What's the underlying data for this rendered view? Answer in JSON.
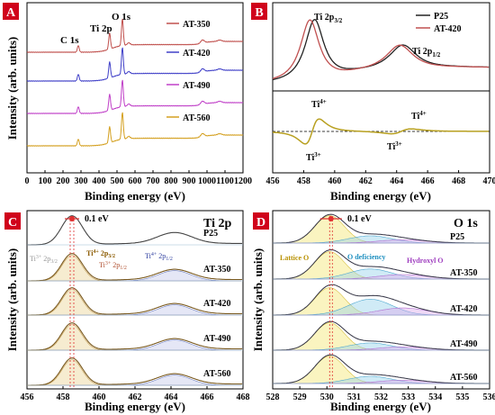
{
  "colors": {
    "badge": "#d0021b",
    "dashed_ref": "#e03030",
    "p25": "#222222",
    "at420": "#c05050",
    "diff": "#b8a020"
  },
  "chart_data": [
    {
      "panel": "A",
      "type": "line",
      "xlabel": "Binding energy (eV)",
      "ylabel": "Intensity (arb. units)",
      "xlim": [
        0,
        1200
      ],
      "xticks": [
        "0",
        "100",
        "200",
        "300",
        "400",
        "500",
        "600",
        "700",
        "800",
        "900",
        "1000",
        "1100",
        "1200"
      ],
      "annotations": [
        "C 1s",
        "Ti 2p",
        "O 1s"
      ],
      "series": [
        {
          "name": "AT-350",
          "color": "#c0504d",
          "offset": 4
        },
        {
          "name": "AT-420",
          "color": "#4040c8",
          "offset": 3
        },
        {
          "name": "AT-490",
          "color": "#c040c8",
          "offset": 2
        },
        {
          "name": "AT-560",
          "color": "#d4a020",
          "offset": 1
        }
      ],
      "peaks": [
        {
          "label": "C 1s",
          "x": 285,
          "height": 0.25
        },
        {
          "label": "Ti 2p",
          "x": 459,
          "height": 0.6
        },
        {
          "label": "O 1s",
          "x": 530,
          "height": 1.0
        }
      ]
    },
    {
      "panel": "B",
      "type": "line",
      "xlabel": "Binding energy (eV)",
      "xlim": [
        456,
        470
      ],
      "xticks": [
        "456",
        "458",
        "460",
        "462",
        "464",
        "466",
        "468",
        "470"
      ],
      "annotations_top": [
        "Ti 2p3/2",
        "Ti 2p1/2"
      ],
      "annotations_bottom": [
        "Ti4+",
        "Ti3+",
        "Ti3+",
        "Ti4+"
      ],
      "series": [
        {
          "name": "P25",
          "color": "#222222",
          "peak1": 458.7,
          "peak2": 464.4
        },
        {
          "name": "AT-420",
          "color": "#c05050",
          "peak1": 458.4,
          "peak2": 464.2
        }
      ]
    },
    {
      "panel": "C",
      "type": "line",
      "title": "Ti 2p",
      "xlabel": "Binding energy (eV)",
      "ylabel": "Intensity (arb. units)",
      "xlim": [
        456,
        468
      ],
      "xticks": [
        "456",
        "458",
        "460",
        "462",
        "464",
        "466",
        "468"
      ],
      "shift_label": "0.1 eV",
      "series": [
        {
          "name": "P25",
          "offset": 4
        },
        {
          "name": "AT-350",
          "offset": 3
        },
        {
          "name": "AT-420",
          "offset": 2
        },
        {
          "name": "AT-490",
          "offset": 1
        },
        {
          "name": "AT-560",
          "offset": 0
        }
      ],
      "components": [
        "Ti4+ 2p3/2",
        "Ti3+ 2p3/2",
        "Ti3+ 2p1/2",
        "Ti4+ 2p1/2"
      ]
    },
    {
      "panel": "D",
      "type": "line",
      "title": "O 1s",
      "xlabel": "Binding energy (eV)",
      "ylabel": "Intensity (arb. units)",
      "xlim": [
        528,
        536
      ],
      "xticks": [
        "528",
        "529",
        "530",
        "531",
        "532",
        "533",
        "534",
        "535",
        "536"
      ],
      "shift_label": "0.1 eV",
      "series": [
        {
          "name": "P25",
          "offset": 4
        },
        {
          "name": "AT-350",
          "offset": 3
        },
        {
          "name": "AT-420",
          "offset": 2
        },
        {
          "name": "AT-490",
          "offset": 1
        },
        {
          "name": "AT-560",
          "offset": 0
        }
      ],
      "components": [
        "Lattice O",
        "O deficiency",
        "Hydroxyl O"
      ]
    }
  ],
  "labels": {
    "panel_a": "A",
    "panel_b": "B",
    "panel_c": "C",
    "panel_d": "D",
    "a_ylabel": "Intensity (arb. units)",
    "a_xlabel": "Binding energy (eV)",
    "b_xlabel": "Binding energy (eV)",
    "c_ylabel": "Intensity (arb. units)",
    "c_xlabel": "Binding energy (eV)",
    "d_ylabel": "Intensity (arb. units)",
    "d_xlabel": "Binding energy (eV)",
    "a_c1s": "C 1s",
    "a_ti2p": "Ti 2p",
    "a_o1s": "O 1s",
    "b_ti2p32": "Ti 2p",
    "b_ti2p32_sub": "3/2",
    "b_ti2p12": "Ti 2p",
    "b_ti2p12_sub": "1/2",
    "b_legend_p25": "P25",
    "b_legend_at420": "AT-420",
    "b_ti4_a": "Ti",
    "b_ti4_a_sup": "4+",
    "b_ti3_a": "Ti",
    "b_ti3_a_sup": "3+",
    "b_ti3_b": "Ti",
    "b_ti3_b_sup": "3+",
    "b_ti4_b": "Ti",
    "b_ti4_b_sup": "4+",
    "c_title": "Ti 2p",
    "c_shift": "0.1 eV",
    "c_ti4_32": "Ti",
    "c_ti4_32_sup": "4+",
    "c_ti4_32_rest": " 2p",
    "c_ti4_32_sub": "3/2",
    "c_ti3_32": "Ti",
    "c_ti3_32_sup": "3+",
    "c_ti3_32_rest": " 2p",
    "c_ti3_32_sub": "3/2",
    "c_ti3_12": "Ti",
    "c_ti3_12_sup": "3+",
    "c_ti3_12_rest": " 2p",
    "c_ti3_12_sub": "1/2",
    "c_ti4_12": "Ti",
    "c_ti4_12_sup": "4+",
    "c_ti4_12_rest": " 2p",
    "c_ti4_12_sub": "1/2",
    "d_title": "O 1s",
    "d_shift": "0.1 eV",
    "d_lattice": "Lattice O",
    "d_odef": "O deficiency",
    "d_hydroxyl": "Hydroxyl O"
  }
}
